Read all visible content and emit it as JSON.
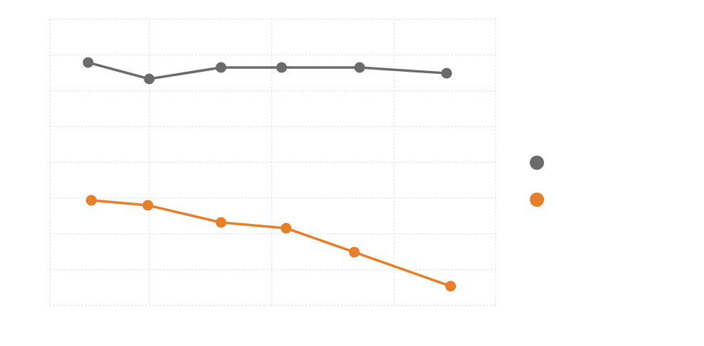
{
  "chart_data": {
    "type": "line",
    "title": "",
    "xlabel": "",
    "ylabel": "",
    "xlim": [
      0,
      10
    ],
    "ylim": [
      0,
      8
    ],
    "xgrid": [
      0,
      2.23,
      4.98,
      7.72,
      10
    ],
    "ygrid": [
      0,
      1,
      2,
      3,
      4,
      5,
      6,
      7,
      8
    ],
    "grid": true,
    "legend_position": "right",
    "series": [
      {
        "name": "",
        "color": "#6b6b6b",
        "x": [
          0.86,
          2.23,
          3.84,
          5.2,
          6.95,
          8.9
        ],
        "y": [
          6.79,
          6.33,
          6.65,
          6.65,
          6.65,
          6.49
        ]
      },
      {
        "name": "",
        "color": "#e67e2a",
        "x": [
          0.93,
          2.2,
          3.84,
          5.3,
          6.83,
          8.99
        ],
        "y": [
          2.94,
          2.8,
          2.32,
          2.16,
          1.49,
          0.54
        ]
      }
    ]
  }
}
